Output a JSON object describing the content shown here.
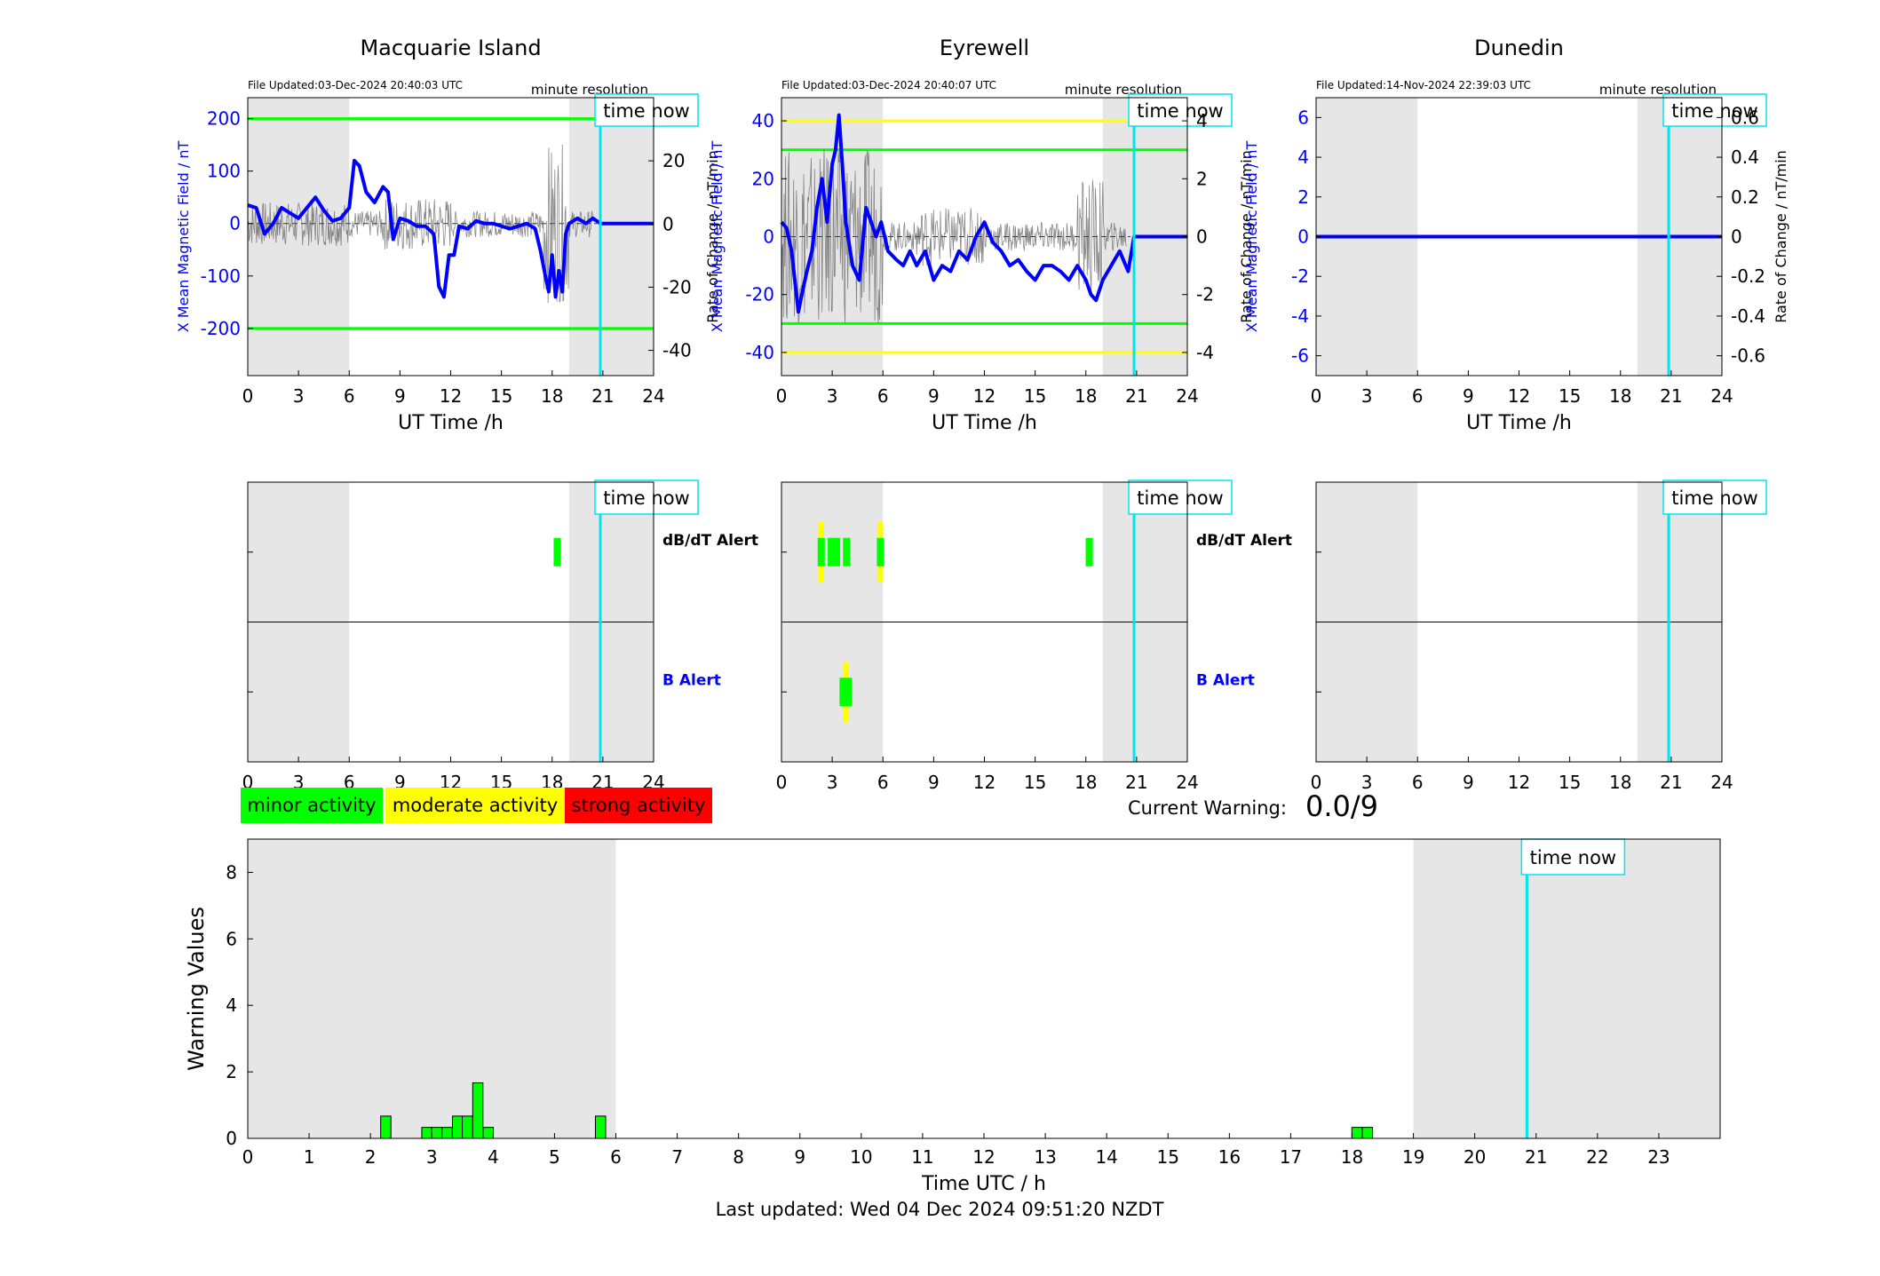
{
  "colors": {
    "blue": "#0000ff",
    "green": "#00ff00",
    "yellow": "#ffff00",
    "red": "#ff0000",
    "cyan": "#00e5ee",
    "night_shade": "#e6e6e6",
    "grey_trace": "#555555"
  },
  "common": {
    "time_now_label": "time now",
    "minute_resolution": "minute resolution",
    "ut_xlabel": "UT Time /h",
    "ylabel_left": "X Mean Magnetic Field / nT",
    "ylabel_right": "Rate of Change / nT/min",
    "dbdt_alert_label": "dB/dT Alert",
    "b_alert_label": "B Alert",
    "hour_ticks": [
      "0",
      "3",
      "6",
      "9",
      "12",
      "15",
      "18",
      "21",
      "24"
    ],
    "time_now_hour": 20.85
  },
  "stations": [
    {
      "name": "Macquarie Island",
      "file_updated": "File Updated:03-Dec-2024 20:40:03 UTC",
      "left_ticks": [
        "200",
        "100",
        "0",
        "-100",
        "-200"
      ],
      "right_ticks": [
        "20",
        "0",
        "-20",
        "-40"
      ],
      "night_shade": [
        [
          0,
          6
        ],
        [
          19,
          24
        ]
      ]
    },
    {
      "name": "Eyrewell",
      "file_updated": "File Updated:03-Dec-2024 20:40:07 UTC",
      "left_ticks": [
        "40",
        "20",
        "0",
        "-20",
        "-40"
      ],
      "right_ticks": [
        "4",
        "2",
        "0",
        "-2",
        "-4"
      ],
      "night_shade": [
        [
          0,
          6
        ],
        [
          19,
          24
        ]
      ]
    },
    {
      "name": "Dunedin",
      "file_updated": "File Updated:14-Nov-2024 22:39:03 UTC",
      "left_ticks": [
        "6",
        "4",
        "2",
        "0",
        "-2",
        "-4",
        "-6"
      ],
      "right_ticks": [
        "0.6",
        "0.4",
        "0.2",
        "0",
        "-0.2",
        "-0.4",
        "-0.6"
      ],
      "night_shade": [
        [
          0,
          6
        ],
        [
          19,
          24
        ]
      ]
    }
  ],
  "legend": {
    "minor": "minor activity",
    "moderate": "moderate activity",
    "strong": "strong activity"
  },
  "current_warning": {
    "label": "Current Warning:",
    "value": "0.0/9"
  },
  "footer": {
    "last_updated": "Last updated: Wed 04 Dec 2024 09:51:20 NZDT"
  },
  "chart_data": [
    {
      "type": "line",
      "title": "Macquarie Island",
      "xlabel": "UT Time /h",
      "ylabel": "X Mean Magnetic Field / nT",
      "ylabel_right": "Rate of Change / nT/min",
      "xlim": [
        0,
        24
      ],
      "ylim": [
        -290,
        240
      ],
      "ylim_right": [
        -48,
        40
      ],
      "thresholds_left": [
        {
          "value": 200,
          "color": "#00ff00"
        },
        {
          "value": -200,
          "color": "#00ff00"
        }
      ],
      "series": [
        {
          "x": [
            0,
            0.5,
            1,
            1.5,
            2,
            2.5,
            3,
            3.5,
            4,
            4.5,
            5,
            5.5,
            6,
            6.3,
            6.6,
            7,
            7.5,
            8,
            8.3,
            8.6,
            9,
            9.5,
            10,
            10.5,
            11,
            11.3,
            11.6,
            11.9,
            12.2,
            12.5,
            13,
            13.5,
            14,
            14.5,
            15,
            15.5,
            16,
            16.5,
            17,
            17.3,
            17.6,
            17.8,
            18,
            18.2,
            18.4,
            18.6,
            18.8,
            19,
            19.5,
            20,
            20.4,
            20.85,
            22,
            24
          ],
          "y": [
            35,
            30,
            -20,
            0,
            30,
            20,
            10,
            30,
            50,
            25,
            5,
            10,
            30,
            120,
            110,
            60,
            40,
            70,
            60,
            -30,
            10,
            5,
            -5,
            -5,
            -20,
            -120,
            -140,
            -60,
            -60,
            -5,
            -10,
            5,
            0,
            0,
            -5,
            -10,
            -5,
            0,
            -10,
            -50,
            -100,
            -130,
            -60,
            -140,
            -90,
            -130,
            -20,
            0,
            10,
            0,
            10,
            0,
            0,
            0
          ]
        }
      ]
    },
    {
      "type": "line",
      "title": "Eyrewell",
      "xlabel": "UT Time /h",
      "ylabel": "X Mean Magnetic Field / nT",
      "ylabel_right": "Rate of Change / nT/min",
      "xlim": [
        0,
        24
      ],
      "ylim": [
        -48,
        48
      ],
      "ylim_right": [
        -4.8,
        4.8
      ],
      "thresholds_left": [
        {
          "value": 40,
          "color": "#ffff00"
        },
        {
          "value": 30,
          "color": "#00ff00"
        },
        {
          "value": -30,
          "color": "#00ff00"
        },
        {
          "value": -40,
          "color": "#ffff00"
        }
      ],
      "series": [
        {
          "x": [
            0,
            0.3,
            0.6,
            1,
            1.2,
            1.5,
            1.8,
            2.1,
            2.4,
            2.7,
            3,
            3.2,
            3.4,
            3.6,
            3.8,
            4.2,
            4.6,
            5,
            5.3,
            5.6,
            5.9,
            6.3,
            6.8,
            7.2,
            7.6,
            8,
            8.5,
            9,
            9.5,
            10,
            10.5,
            11,
            11.5,
            12,
            12.5,
            13,
            13.5,
            14,
            14.5,
            15,
            15.5,
            16,
            16.5,
            17,
            17.5,
            18,
            18.3,
            18.6,
            19,
            19.5,
            20,
            20.5,
            20.85,
            22,
            24
          ],
          "y": [
            5,
            3,
            -5,
            -26,
            -20,
            -12,
            -5,
            10,
            20,
            5,
            25,
            30,
            42,
            25,
            5,
            -10,
            -15,
            10,
            5,
            0,
            5,
            -5,
            -8,
            -10,
            -5,
            -10,
            -5,
            -15,
            -10,
            -12,
            -5,
            -8,
            0,
            5,
            -2,
            -5,
            -10,
            -8,
            -12,
            -15,
            -10,
            -10,
            -12,
            -15,
            -10,
            -15,
            -20,
            -22,
            -15,
            -10,
            -5,
            -12,
            0,
            0,
            0
          ]
        }
      ]
    },
    {
      "type": "line",
      "title": "Dunedin",
      "xlabel": "UT Time /h",
      "ylabel": "X Mean Magnetic Field / nT",
      "ylabel_right": "Rate of Change / nT/min",
      "xlim": [
        0,
        24
      ],
      "ylim": [
        -7,
        7
      ],
      "ylim_right": [
        -0.7,
        0.7
      ],
      "series": [
        {
          "x": [
            0,
            24
          ],
          "y": [
            0,
            0
          ]
        }
      ]
    },
    {
      "type": "bar",
      "xlabel": "Time UTC / h",
      "ylabel": "Warning Values",
      "xlim": [
        0,
        24
      ],
      "ylim": [
        0,
        9
      ],
      "x_ticks": [
        "0",
        "1",
        "2",
        "3",
        "4",
        "5",
        "6",
        "7",
        "8",
        "9",
        "10",
        "11",
        "12",
        "13",
        "14",
        "15",
        "16",
        "17",
        "18",
        "19",
        "20",
        "21",
        "22",
        "23"
      ],
      "y_ticks": [
        "0",
        "2",
        "4",
        "6",
        "8"
      ],
      "night_shade": [
        [
          0,
          6
        ],
        [
          19,
          24
        ]
      ],
      "time_now_hour": 20.85,
      "bar_width_hours": 0.1667,
      "bars": {
        "x": [
          2.25,
          2.92,
          3.08,
          3.25,
          3.42,
          3.58,
          3.75,
          3.92,
          5.75,
          18.08,
          18.25
        ],
        "values": [
          0.67,
          0.33,
          0.33,
          0.33,
          0.67,
          0.67,
          1.67,
          0.33,
          0.67,
          0.33,
          0.33
        ]
      }
    }
  ]
}
